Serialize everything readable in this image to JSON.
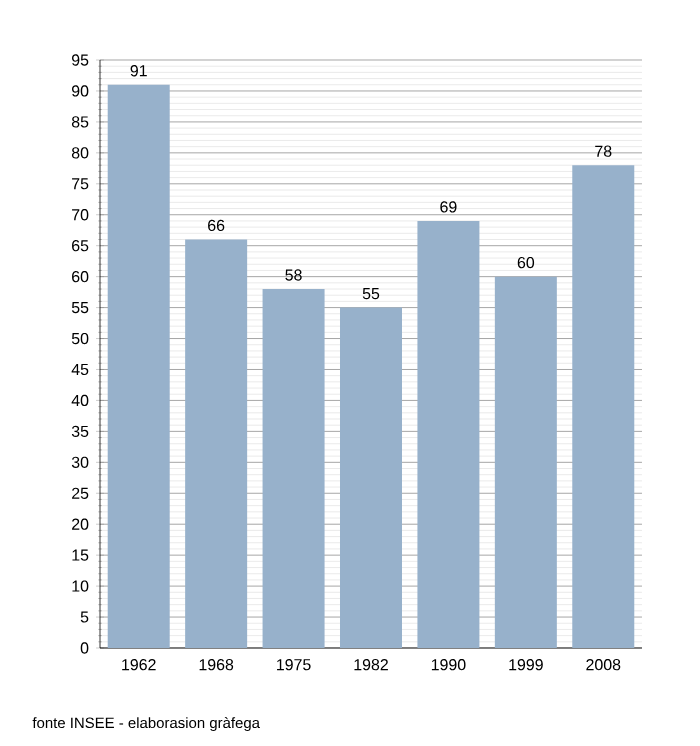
{
  "chart_data": {
    "type": "bar",
    "categories": [
      "1962",
      "1968",
      "1975",
      "1982",
      "1990",
      "1999",
      "2008"
    ],
    "values": [
      91,
      66,
      58,
      55,
      69,
      60,
      78
    ],
    "color": "#97b1cb",
    "ylim": [
      0,
      95
    ],
    "yticks": [
      0,
      5,
      10,
      15,
      20,
      25,
      30,
      35,
      40,
      45,
      50,
      55,
      60,
      65,
      70,
      75,
      80,
      85,
      90,
      95
    ],
    "grid": "y",
    "data_labels": true,
    "annotations": [
      "fonte INSEE - elaborasion gràfega"
    ]
  }
}
